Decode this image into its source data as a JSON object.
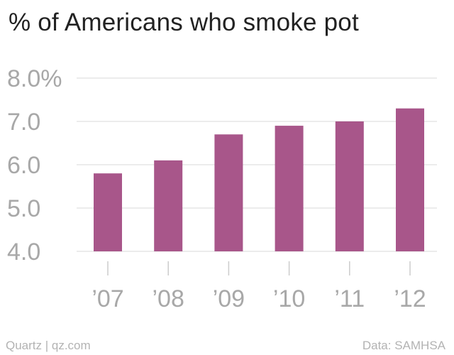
{
  "title": "% of Americans who smoke pot",
  "footer": {
    "source_left": "Quartz | qz.com",
    "source_right": "Data: SAMHSA"
  },
  "colors": {
    "bar": "#a8568a",
    "grid": "#e6e6e6",
    "axis_text": "#a8a8a8",
    "title": "#222222"
  },
  "chart_data": {
    "type": "bar",
    "title": "% of Americans who smoke pot",
    "xlabel": "",
    "ylabel": "",
    "categories": [
      "’07",
      "’08",
      "’09",
      "’10",
      "’11",
      "’12"
    ],
    "values": [
      5.8,
      6.1,
      6.7,
      6.9,
      7.0,
      7.3
    ],
    "ylim": [
      4.0,
      8.0
    ],
    "yticks": [
      4.0,
      5.0,
      6.0,
      7.0,
      8.0
    ],
    "ytick_labels": [
      "4.0",
      "5.0",
      "6.0",
      "7.0",
      "8.0%"
    ],
    "grid": true,
    "legend": "none"
  }
}
